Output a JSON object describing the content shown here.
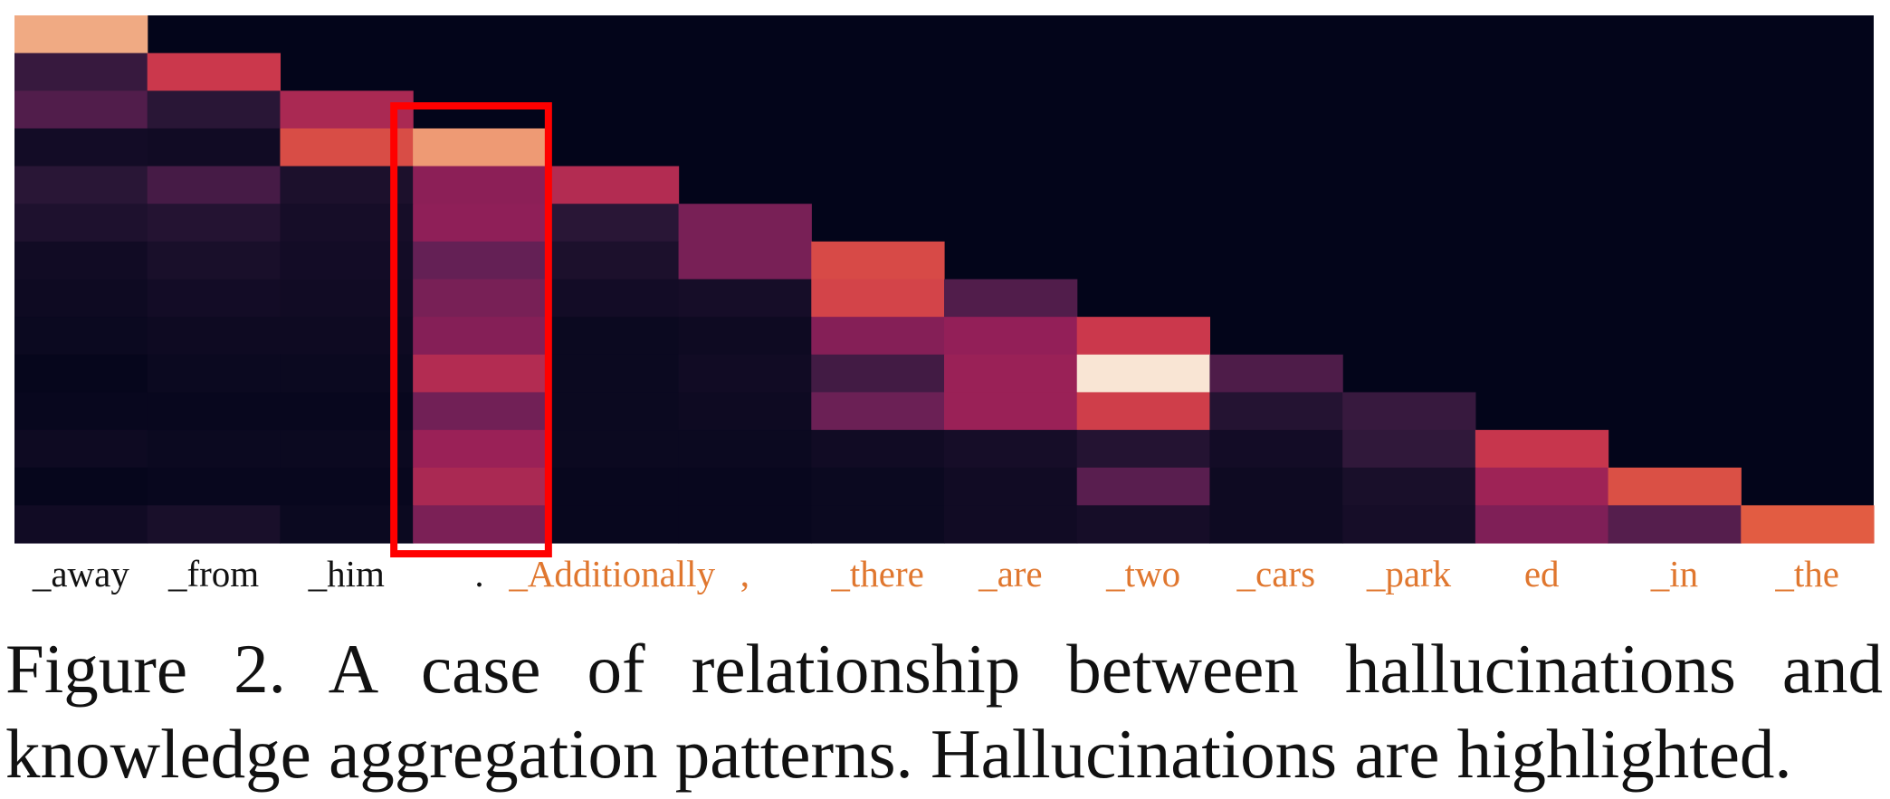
{
  "caption": {
    "line1": "Figure 2.  A case of relationship between hallucinations and",
    "line2": "knowledge aggregation patterns. Hallucinations are highlighted."
  },
  "colors": {
    "normal_token": "#111111",
    "hallucinated_token": "#e0772f",
    "highlight_box": "#ff0000",
    "background": "#03051a"
  },
  "chart_data": {
    "type": "heatmap",
    "colormap": "rocket",
    "title": "",
    "xlabel": "",
    "ylabel": "",
    "vmin": 0,
    "vmax": 1,
    "x_tokens": [
      {
        "text": "_away",
        "hallucinated": false
      },
      {
        "text": "_from",
        "hallucinated": false
      },
      {
        "text": "_him",
        "hallucinated": false
      },
      {
        "text": ".",
        "hallucinated": false
      },
      {
        "text": "_Additionally",
        "hallucinated": true
      },
      {
        "text": ",",
        "hallucinated": true
      },
      {
        "text": "_there",
        "hallucinated": true
      },
      {
        "text": "_are",
        "hallucinated": true
      },
      {
        "text": "_two",
        "hallucinated": true
      },
      {
        "text": "_cars",
        "hallucinated": true
      },
      {
        "text": "_park",
        "hallucinated": true
      },
      {
        "text": "ed",
        "hallucinated": true
      },
      {
        "text": "_in",
        "hallucinated": true
      },
      {
        "text": "_the",
        "hallucinated": true
      }
    ],
    "highlight_columns": [
      3
    ],
    "values": [
      [
        0.88,
        0,
        0,
        0,
        0,
        0,
        0,
        0,
        0,
        0,
        0,
        0,
        0,
        0
      ],
      [
        0.18,
        0.58,
        0,
        0,
        0,
        0,
        0,
        0,
        0,
        0,
        0,
        0,
        0,
        0
      ],
      [
        0.25,
        0.14,
        0.5,
        0,
        0,
        0,
        0,
        0,
        0,
        0,
        0,
        0,
        0,
        0
      ],
      [
        0.06,
        0.05,
        0.65,
        0.85,
        0,
        0,
        0,
        0,
        0,
        0,
        0,
        0,
        0,
        0
      ],
      [
        0.14,
        0.22,
        0.09,
        0.42,
        0.52,
        0,
        0,
        0,
        0,
        0,
        0,
        0,
        0,
        0
      ],
      [
        0.1,
        0.12,
        0.07,
        0.43,
        0.14,
        0.36,
        0,
        0,
        0,
        0,
        0,
        0,
        0,
        0
      ],
      [
        0.05,
        0.08,
        0.06,
        0.3,
        0.09,
        0.36,
        0.64,
        0,
        0,
        0,
        0,
        0,
        0,
        0
      ],
      [
        0.04,
        0.06,
        0.05,
        0.36,
        0.06,
        0.07,
        0.62,
        0.25,
        0,
        0,
        0,
        0,
        0,
        0
      ],
      [
        0.03,
        0.04,
        0.04,
        0.4,
        0.03,
        0.04,
        0.4,
        0.44,
        0.58,
        0,
        0,
        0,
        0,
        0
      ],
      [
        0.01,
        0.03,
        0.03,
        0.52,
        0.03,
        0.05,
        0.21,
        0.46,
        0.99,
        0.24,
        0,
        0,
        0,
        0
      ],
      [
        0.02,
        0.02,
        0.02,
        0.34,
        0.03,
        0.04,
        0.32,
        0.46,
        0.6,
        0.12,
        0.18,
        0,
        0,
        0
      ],
      [
        0.04,
        0.03,
        0.03,
        0.46,
        0.03,
        0.03,
        0.05,
        0.07,
        0.12,
        0.06,
        0.16,
        0.57,
        0,
        0
      ],
      [
        0.01,
        0.02,
        0.02,
        0.5,
        0.02,
        0.02,
        0.03,
        0.05,
        0.27,
        0.04,
        0.08,
        0.47,
        0.66,
        0
      ],
      [
        0.05,
        0.08,
        0.03,
        0.37,
        0.02,
        0.02,
        0.03,
        0.05,
        0.07,
        0.04,
        0.07,
        0.38,
        0.26,
        0.7
      ]
    ]
  }
}
